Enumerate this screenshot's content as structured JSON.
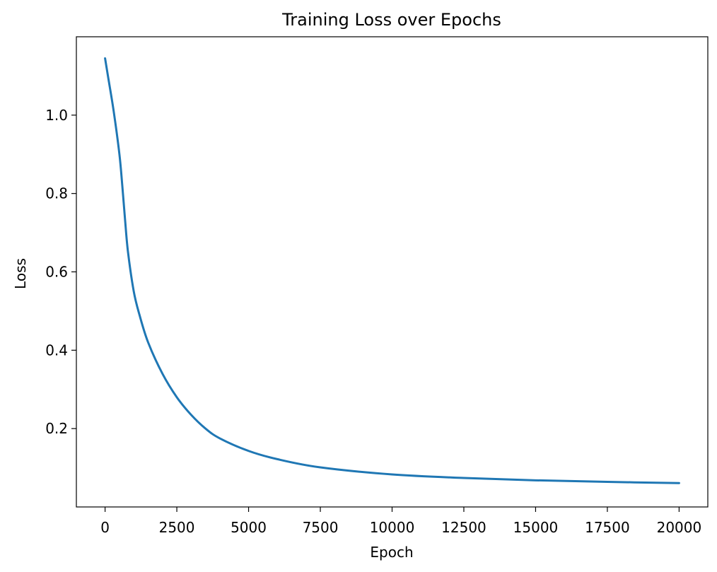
{
  "chart_data": {
    "type": "line",
    "title": "Training Loss over Epochs",
    "xlabel": "Epoch",
    "ylabel": "Loss",
    "xlim": [
      -1000,
      21000
    ],
    "ylim": [
      0.0,
      1.2
    ],
    "xticks": [
      0,
      2500,
      5000,
      7500,
      10000,
      12500,
      15000,
      17500,
      20000
    ],
    "xtick_labels": [
      "0",
      "2500",
      "5000",
      "7500",
      "10000",
      "12500",
      "15000",
      "17500",
      "20000"
    ],
    "yticks": [
      0.2,
      0.4,
      0.6,
      0.8,
      1.0
    ],
    "ytick_labels": [
      "0.2",
      "0.4",
      "0.6",
      "0.8",
      "1.0"
    ],
    "grid": false,
    "series": [
      {
        "color": "#1f77b4",
        "x": [
          0,
          100,
          300,
          500,
          600,
          700,
          800,
          1000,
          1200,
          1500,
          2000,
          2500,
          3000,
          3500,
          4000,
          5000,
          6000,
          7500,
          10000,
          12500,
          15000,
          17500,
          20000
        ],
        "y": [
          1.145,
          1.1,
          1.01,
          0.9,
          0.82,
          0.73,
          0.65,
          0.55,
          0.49,
          0.42,
          0.34,
          0.28,
          0.235,
          0.2,
          0.175,
          0.143,
          0.122,
          0.101,
          0.083,
          0.074,
          0.068,
          0.064,
          0.061
        ]
      }
    ]
  }
}
